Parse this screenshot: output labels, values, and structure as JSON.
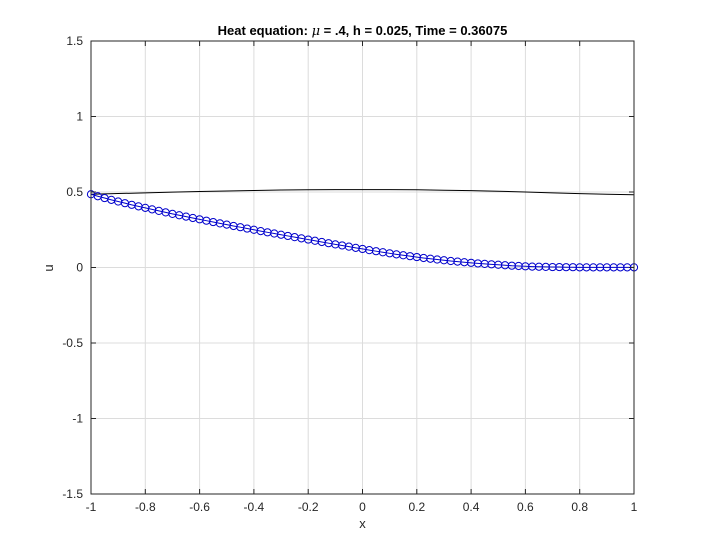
{
  "chart_data": {
    "type": "line",
    "title": "Heat equation: μ = .4, h = 0.025, Time = 0.36075",
    "title_parts": {
      "prefix": "Heat equation: ",
      "symbol": "μ",
      "suffix": " = .4, h = 0.025, Time = 0.36075"
    },
    "xlabel": "x",
    "ylabel": "u",
    "xlim": [
      -1,
      1
    ],
    "ylim": [
      -1.5,
      1.5
    ],
    "xticks": [
      -1,
      -0.8,
      -0.6,
      -0.4,
      -0.2,
      0,
      0.2,
      0.4,
      0.6,
      0.8,
      1
    ],
    "xtick_labels": [
      "-1",
      "-0.8",
      "-0.6",
      "-0.4",
      "-0.2",
      "0",
      "0.2",
      "0.4",
      "0.6",
      "0.8",
      "1"
    ],
    "yticks": [
      -1.5,
      -1,
      -0.5,
      0,
      0.5,
      1,
      1.5
    ],
    "ytick_labels": [
      "-1.5",
      "-1",
      "-0.5",
      "0",
      "0.5",
      "1",
      "1.5"
    ],
    "grid": true,
    "series": [
      {
        "style": "line",
        "color": "#000000",
        "x": [
          -1,
          -0.9,
          -0.8,
          -0.7,
          -0.6,
          -0.5,
          -0.4,
          -0.3,
          -0.2,
          -0.1,
          0,
          0.1,
          0.2,
          0.3,
          0.4,
          0.5,
          0.6,
          0.7,
          0.8,
          0.9,
          1
        ],
        "y": [
          0.485,
          0.49,
          0.494,
          0.499,
          0.503,
          0.507,
          0.51,
          0.513,
          0.515,
          0.516,
          0.516,
          0.516,
          0.515,
          0.512,
          0.509,
          0.505,
          0.5,
          0.494,
          0.489,
          0.485,
          0.482
        ]
      },
      {
        "style": "markers",
        "color": "#0000cc",
        "marker": "circle",
        "x": [
          -1,
          -0.975,
          -0.95,
          -0.925,
          -0.9,
          -0.875,
          -0.85,
          -0.825,
          -0.8,
          -0.775,
          -0.75,
          -0.725,
          -0.7,
          -0.675,
          -0.65,
          -0.625,
          -0.6,
          -0.575,
          -0.55,
          -0.525,
          -0.5,
          -0.475,
          -0.45,
          -0.425,
          -0.4,
          -0.375,
          -0.35,
          -0.325,
          -0.3,
          -0.275,
          -0.25,
          -0.225,
          -0.2,
          -0.175,
          -0.15,
          -0.125,
          -0.1,
          -0.075,
          -0.05,
          -0.025,
          0,
          0.025,
          0.05,
          0.075,
          0.1,
          0.125,
          0.15,
          0.175,
          0.2,
          0.225,
          0.25,
          0.275,
          0.3,
          0.325,
          0.35,
          0.375,
          0.4,
          0.425,
          0.45,
          0.475,
          0.5,
          0.525,
          0.55,
          0.575,
          0.6,
          0.625,
          0.65,
          0.675,
          0.7,
          0.725,
          0.75,
          0.775,
          0.8,
          0.825,
          0.85,
          0.875,
          0.9,
          0.925,
          0.95,
          0.975,
          1
        ],
        "y": [
          0.485,
          0.472,
          0.46,
          0.448,
          0.437,
          0.426,
          0.415,
          0.405,
          0.395,
          0.385,
          0.375,
          0.365,
          0.355,
          0.346,
          0.337,
          0.328,
          0.319,
          0.31,
          0.301,
          0.292,
          0.284,
          0.275,
          0.267,
          0.258,
          0.25,
          0.241,
          0.233,
          0.225,
          0.217,
          0.209,
          0.201,
          0.193,
          0.185,
          0.177,
          0.169,
          0.161,
          0.153,
          0.146,
          0.138,
          0.13,
          0.123,
          0.115,
          0.108,
          0.101,
          0.094,
          0.087,
          0.081,
          0.075,
          0.069,
          0.063,
          0.058,
          0.053,
          0.048,
          0.043,
          0.039,
          0.035,
          0.031,
          0.027,
          0.024,
          0.021,
          0.018,
          0.015,
          0.012,
          0.01,
          0.008,
          0.006,
          0.005,
          0.004,
          0.003,
          0.003,
          0.002,
          0.002,
          0.001,
          0.001,
          0.001,
          0.001,
          0.001,
          0.001,
          0.001,
          0.001,
          0.001
        ]
      }
    ]
  }
}
